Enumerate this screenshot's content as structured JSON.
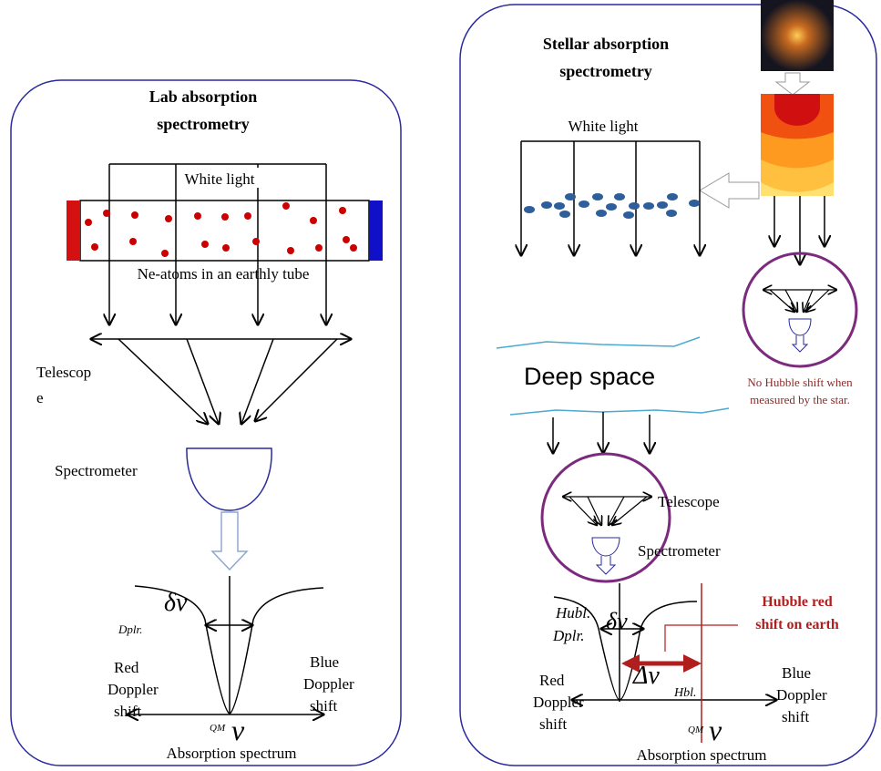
{
  "left": {
    "title": [
      "Lab absorption",
      "spectrometry"
    ],
    "white_light": "White light",
    "tube_label": "Ne-atoms in an earthly tube",
    "telescope": [
      "Telescop",
      "e"
    ],
    "spectrometer": "Spectrometer",
    "linewidth_symbol": "δν",
    "linewidth_subscript": "Dplr.",
    "red_shift": [
      "Red",
      "Doppler",
      "shift"
    ],
    "blue_shift": [
      "Blue",
      "Doppler",
      "shift"
    ],
    "center_superscript": "QM",
    "center_symbol": "ν",
    "caption": "Absorption spectrum"
  },
  "right": {
    "title": [
      "Stellar absorption",
      "spectrometry"
    ],
    "white_light": "White light",
    "star_note": [
      "No Hubble shift when",
      "measured by the star."
    ],
    "deep_space": "Deep space",
    "telescope": "Telescope",
    "spectrometer": "Spectrometer",
    "hubble_label": [
      "Hubble red",
      "shift on earth"
    ],
    "linewidth_subscript": [
      "Hubl.",
      "Dplr."
    ],
    "linewidth_symbol": "δν",
    "shift_symbol": "Δν",
    "shift_subscript": "Hbl.",
    "red_shift": [
      "Red",
      "Doppler",
      "shift"
    ],
    "blue_shift": [
      "Blue",
      "Doppler",
      "shift"
    ],
    "center_superscript": "QM",
    "center_symbol": "ν",
    "caption": "Absorption spectrum"
  }
}
